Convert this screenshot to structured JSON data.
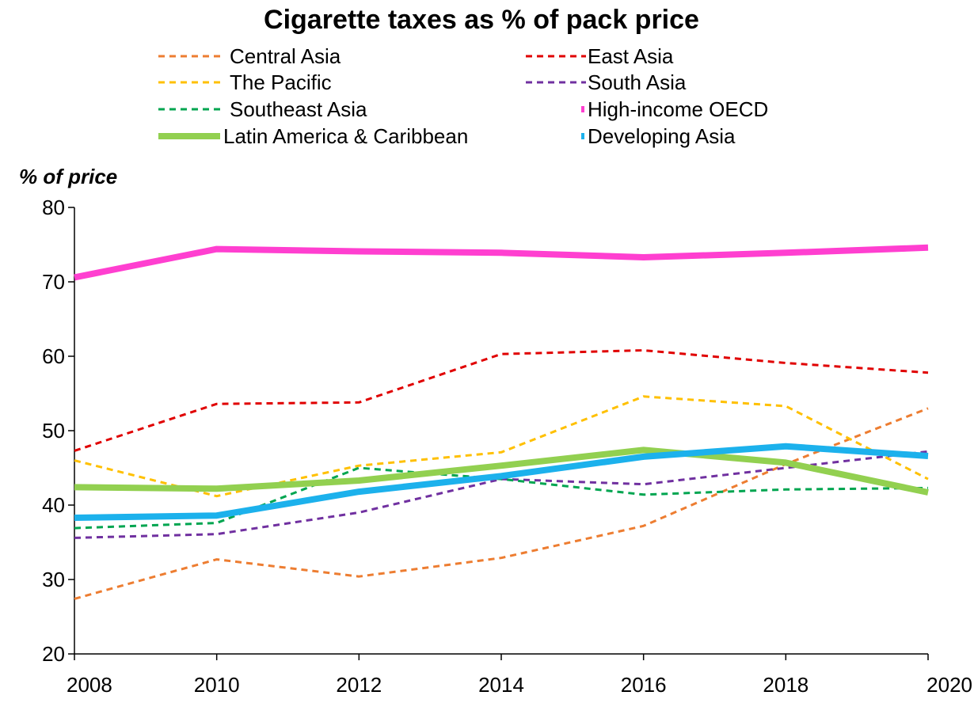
{
  "chart_data": {
    "type": "line",
    "title": "Cigarette taxes as % of pack price",
    "ylabel": "% of price",
    "xlabel": "",
    "x": [
      2008,
      2010,
      2012,
      2014,
      2016,
      2018,
      2020
    ],
    "xlim": [
      2008,
      2020
    ],
    "ylim": [
      20,
      80
    ],
    "yticks": [
      20,
      30,
      40,
      50,
      60,
      70,
      80
    ],
    "xticks": [
      2008,
      2010,
      2012,
      2014,
      2016,
      2018,
      2020
    ],
    "grid": false,
    "legend_position": "top",
    "series": [
      {
        "name": "Central Asia",
        "color": "#ED7D31",
        "style": "dashed",
        "values": [
          27.4,
          32.7,
          30.4,
          32.9,
          37.2,
          45.5,
          53.0
        ]
      },
      {
        "name": "East Asia",
        "color": "#E00000",
        "style": "dashed",
        "values": [
          47.3,
          53.6,
          53.8,
          60.3,
          60.8,
          59.1,
          57.8
        ]
      },
      {
        "name": "The Pacific",
        "color": "#FFC000",
        "style": "dashed",
        "values": [
          46.0,
          41.2,
          45.3,
          47.1,
          54.6,
          53.3,
          43.5
        ]
      },
      {
        "name": "South Asia",
        "color": "#7030A0",
        "style": "dashed",
        "values": [
          35.6,
          36.1,
          39.0,
          43.5,
          42.8,
          45.0,
          47.2
        ]
      },
      {
        "name": "Southeast Asia",
        "color": "#00A550",
        "style": "dashed",
        "values": [
          36.9,
          37.6,
          45.0,
          43.5,
          41.4,
          42.1,
          42.3
        ]
      },
      {
        "name": "High-income OECD",
        "color": "#FF3FD0",
        "style": "solid-thick",
        "values": [
          70.6,
          74.4,
          74.1,
          73.9,
          73.3,
          73.9,
          74.6
        ]
      },
      {
        "name": "Latin America & Caribbean",
        "color": "#92D050",
        "style": "solid-thick",
        "values": [
          42.4,
          42.2,
          43.3,
          45.3,
          47.4,
          45.7,
          41.7
        ]
      },
      {
        "name": "Developing Asia",
        "color": "#1CB1EC",
        "style": "solid-thick",
        "values": [
          38.3,
          38.6,
          41.8,
          43.9,
          46.5,
          47.9,
          46.6
        ]
      }
    ]
  }
}
